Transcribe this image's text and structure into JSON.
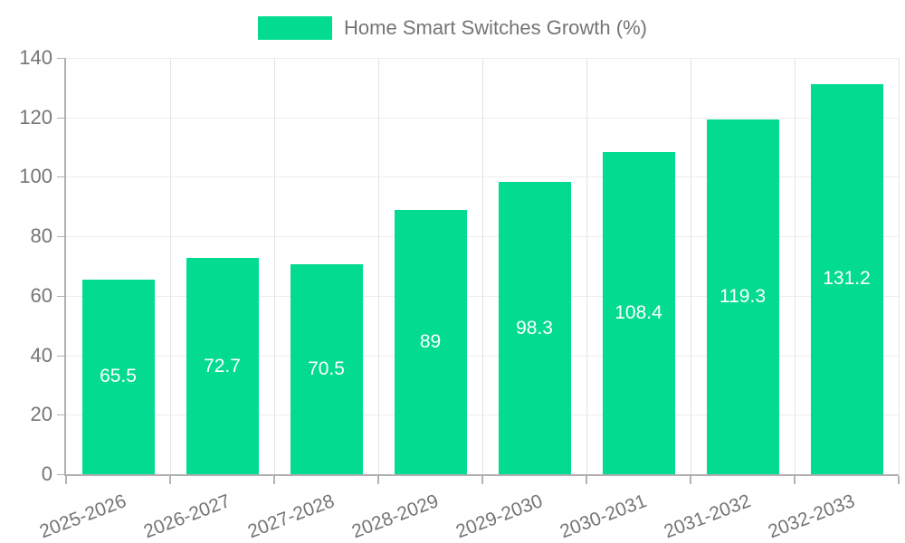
{
  "chart_data": {
    "type": "bar",
    "title": "Home Smart Switches Growth (%)",
    "legend": {
      "position": "top",
      "label": "Home Smart Switches Growth (%)",
      "swatch_color": "#03db90"
    },
    "categories": [
      "2025-2026",
      "2026-2027",
      "2027-2028",
      "2028-2029",
      "2029-2030",
      "2030-2031",
      "2031-2032",
      "2032-2033"
    ],
    "values": [
      65.5,
      72.7,
      70.5,
      89,
      98.3,
      108.4,
      119.3,
      131.2
    ],
    "value_labels": [
      "65.5",
      "72.7",
      "70.5",
      "89",
      "98.3",
      "108.4",
      "119.3",
      "131.2"
    ],
    "xlabel": "",
    "ylabel": "",
    "ylim": [
      0,
      140
    ],
    "yticks": [
      0,
      20,
      40,
      60,
      80,
      100,
      120,
      140
    ],
    "grid": true,
    "x_tick_rotation_deg": -21,
    "colors": {
      "bar": "#03db90",
      "value_label": "#ffffff",
      "axis_line": "#b0b0b0",
      "grid_horizontal": "#ededed",
      "grid_vertical": "#e3e3e3",
      "tick_label": "#757575",
      "legend_text": "#757575"
    }
  }
}
